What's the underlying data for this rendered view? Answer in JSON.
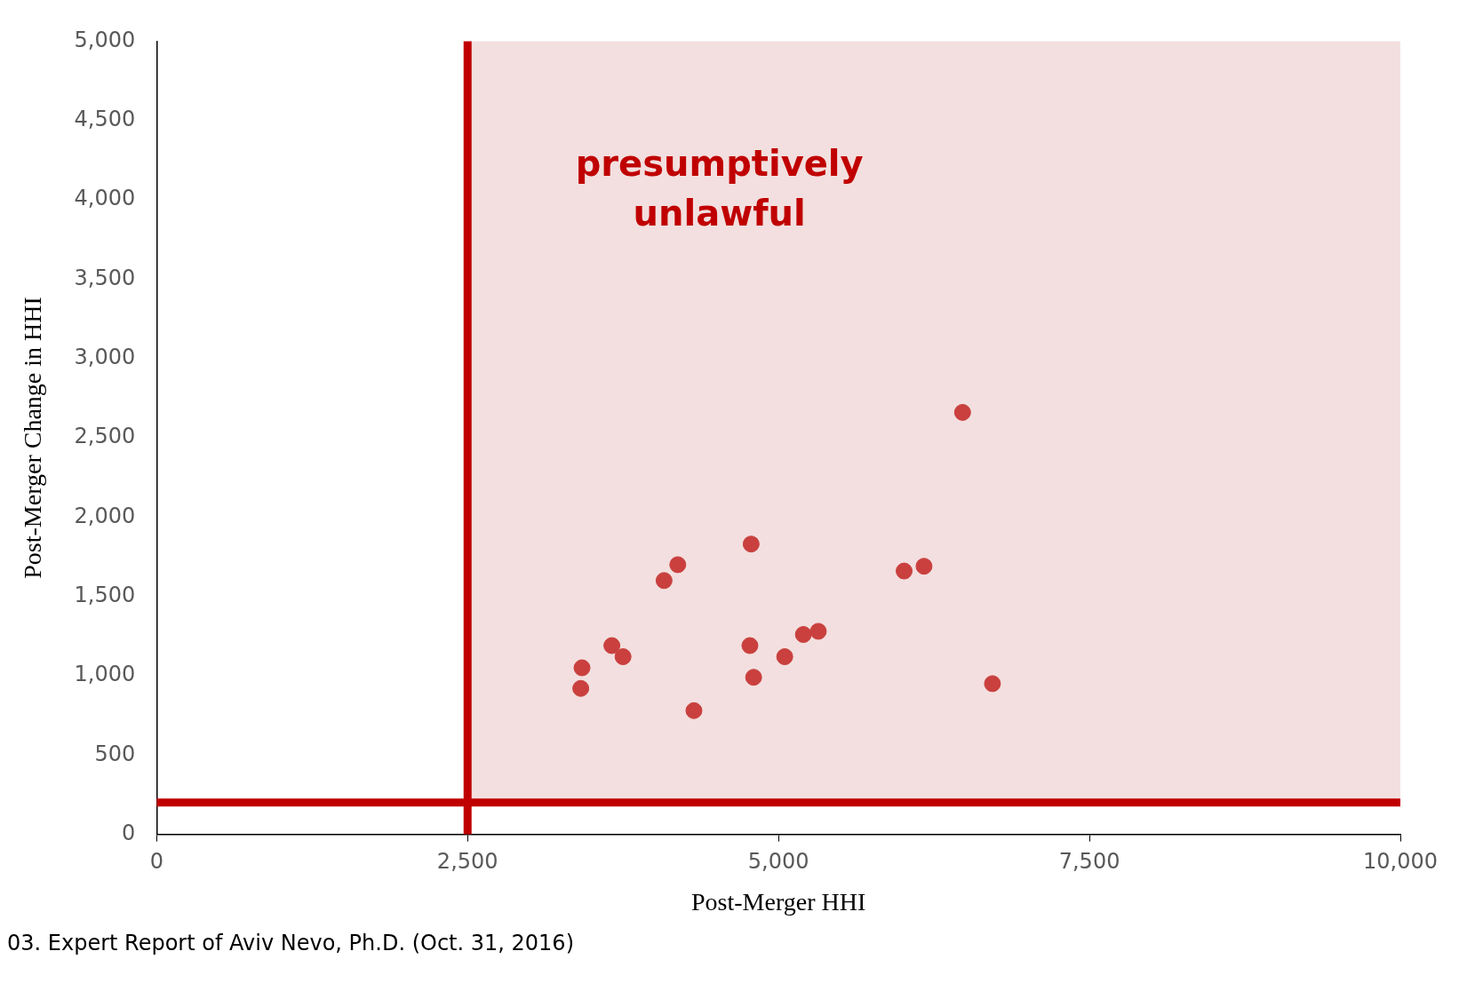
{
  "chart_data": {
    "type": "scatter",
    "xlabel": "Post-Merger HHI",
    "ylabel": "Post-Merger Change in HHI",
    "x": [
      3420,
      3410,
      3660,
      3750,
      4080,
      4190,
      4320,
      4780,
      4770,
      4800,
      5050,
      5200,
      5320,
      6010,
      6170,
      6480,
      6720
    ],
    "series": [
      {
        "color": "#c9403e",
        "values": [
          1050,
          920,
          1190,
          1120,
          1600,
          1700,
          780,
          1830,
          1190,
          990,
          1120,
          1260,
          1280,
          1660,
          1690,
          2660,
          950
        ]
      }
    ],
    "marker": "circle",
    "xlim": [
      0,
      10000
    ],
    "xticks": [
      {
        "value": 0,
        "label": "0"
      },
      {
        "value": 2500,
        "label": "2,500"
      },
      {
        "value": 5000,
        "label": "5,000"
      },
      {
        "value": 7500,
        "label": "7,500"
      },
      {
        "value": 10000,
        "label": "10,000"
      }
    ],
    "ylim": [
      0,
      5000
    ],
    "yticks": [
      {
        "value": 0,
        "label": "0"
      },
      {
        "value": 500,
        "label": "500"
      },
      {
        "value": 1000,
        "label": "1,000"
      },
      {
        "value": 1500,
        "label": "1,500"
      },
      {
        "value": 2000,
        "label": "2,000"
      },
      {
        "value": 2500,
        "label": "2,500"
      },
      {
        "value": 3000,
        "label": "3,000"
      },
      {
        "value": 3500,
        "label": "3,500"
      },
      {
        "value": 4000,
        "label": "4,000"
      },
      {
        "value": 4500,
        "label": "4,500"
      },
      {
        "value": 5000,
        "label": "5,000"
      }
    ],
    "ref_lines": [
      {
        "axis": "x",
        "value": 2500,
        "color": "#c00000"
      },
      {
        "axis": "y",
        "value": 200,
        "color": "#c00000"
      }
    ],
    "bands": [
      {
        "axis": "x",
        "from": 2500,
        "to": 10000,
        "label": "presumptively unlawful",
        "color": "#f3dfdf"
      }
    ],
    "annotations": [
      "03. Expert Report of Aviv Nevo, Ph.D. (Oct. 31, 2016)"
    ],
    "grid": false,
    "legend": false
  }
}
